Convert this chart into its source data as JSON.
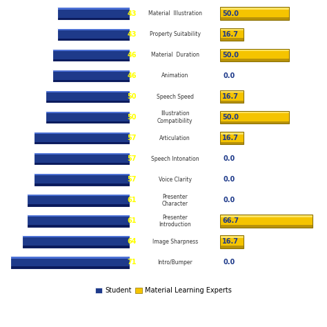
{
  "categories": [
    "Material  Illustration",
    "Property Suitability",
    "Material  Duration",
    "Animation",
    "Speech Speed",
    "Illustration\nCompatibility",
    "Articulation",
    "Speech Intonation",
    "Voice Clarity",
    "Presenter\nCharacter",
    "Presenter\nIntroduction",
    "Image Sharpness",
    "Intro/Bumper"
  ],
  "student_values": [
    43,
    43,
    46,
    46,
    50,
    50,
    57,
    57,
    57,
    61,
    61,
    64,
    71
  ],
  "expert_values": [
    50.0,
    16.7,
    50.0,
    0.0,
    16.7,
    50.0,
    16.7,
    0.0,
    0.0,
    0.0,
    66.7,
    16.7,
    0.0
  ],
  "student_color_main": "#1E3A8A",
  "student_color_top": "#4A6FD4",
  "student_color_bottom": "#0A1A5C",
  "expert_color_main": "#F5C400",
  "expert_color_top": "#FFE566",
  "expert_color_bottom": "#B8920A",
  "student_label_color": "#FFFF00",
  "expert_label_color": "#1E3A8A",
  "label_color": "#333333",
  "background_color": "#FFFFFF",
  "max_student": 75,
  "max_expert": 75,
  "legend_student": "Student",
  "legend_expert": "Material Learning Experts"
}
